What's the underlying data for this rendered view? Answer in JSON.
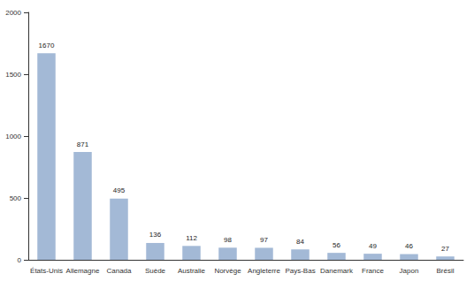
{
  "chart_data": {
    "type": "bar",
    "categories": [
      "États-Unis",
      "Allemagne",
      "Canada",
      "Suède",
      "Australie",
      "Norvège",
      "Angleterre",
      "Pays-Bas",
      "Danemark",
      "France",
      "Japon",
      "Brésil"
    ],
    "values": [
      1670,
      871,
      495,
      136,
      112,
      98,
      97,
      84,
      56,
      49,
      46,
      27
    ],
    "color": "#a3b9d6",
    "ylim": [
      0,
      2000
    ],
    "yticks": [
      0,
      500,
      1000,
      1500,
      2000
    ],
    "grid": false,
    "data_labels": true
  }
}
